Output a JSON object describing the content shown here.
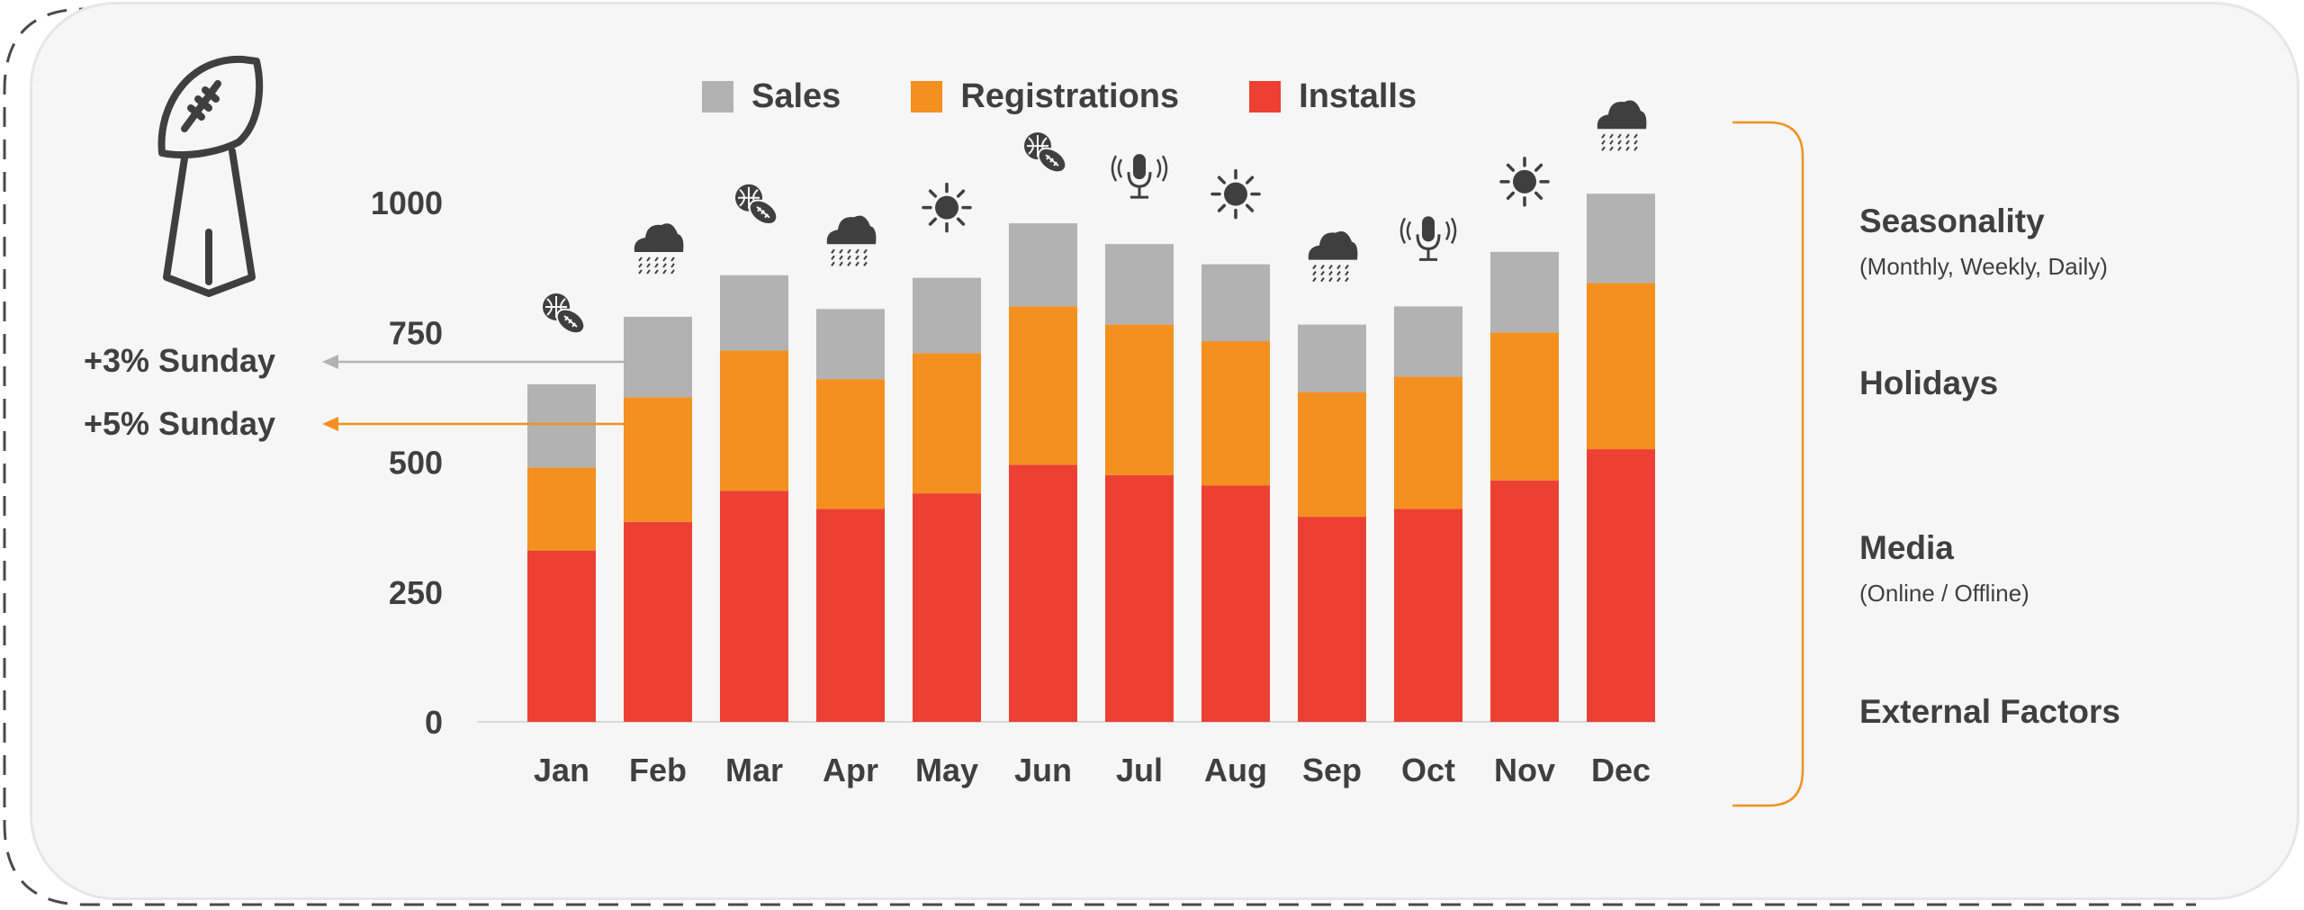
{
  "legend": {
    "sales": "Sales",
    "registrations": "Registrations",
    "installs": "Installs"
  },
  "colors": {
    "sales": "#b2b2b2",
    "registrations": "#f39020",
    "installs": "#ed4034",
    "bracket": "#f39020",
    "arrow_gray": "#b2b2b2",
    "arrow_orange": "#f39020",
    "text": "#3f3f3f"
  },
  "annotations": {
    "gray_arrow": "+3% Sunday",
    "orange_arrow": "+5% Sunday"
  },
  "factors": [
    {
      "title": "Seasonality",
      "subtitle": "(Monthly, Weekly, Daily)"
    },
    {
      "title": "Holidays",
      "subtitle": ""
    },
    {
      "title": "Media",
      "subtitle": "(Online / Offline)"
    },
    {
      "title": "External Factors",
      "subtitle": ""
    }
  ],
  "chart_data": {
    "type": "bar",
    "stacked": true,
    "categories": [
      "Jan",
      "Feb",
      "Mar",
      "Apr",
      "May",
      "Jun",
      "Jul",
      "Aug",
      "Sep",
      "Oct",
      "Nov",
      "Dec"
    ],
    "series": [
      {
        "name": "Installs",
        "values": [
          330,
          385,
          445,
          410,
          440,
          495,
          475,
          455,
          395,
          410,
          465,
          525
        ]
      },
      {
        "name": "Registrations",
        "values": [
          160,
          240,
          270,
          250,
          270,
          305,
          290,
          278,
          240,
          255,
          285,
          320
        ]
      },
      {
        "name": "Sales",
        "values": [
          160,
          155,
          145,
          135,
          145,
          160,
          155,
          148,
          130,
          135,
          155,
          172
        ]
      }
    ],
    "ylim": [
      0,
      1000
    ],
    "yticks": [
      "0",
      "250",
      "500",
      "750",
      "1000"
    ],
    "icons": [
      "football-basketball-icon",
      "rain-cloud-icon",
      "football-basketball-icon",
      "rain-cloud-icon",
      "sun-icon",
      "football-basketball-icon",
      "microphone-icon",
      "sun-icon",
      "rain-cloud-icon",
      "microphone-icon",
      "sun-icon",
      "rain-cloud-icon"
    ],
    "grid": false,
    "legend_position": "top"
  }
}
